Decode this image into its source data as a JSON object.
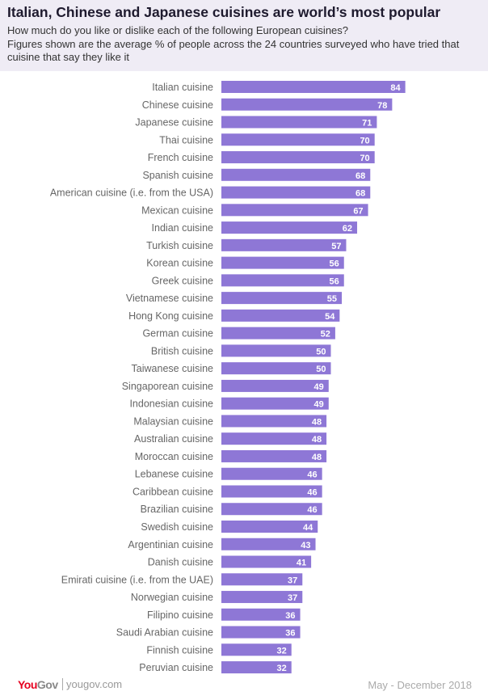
{
  "chart_data": {
    "type": "bar",
    "orientation": "horizontal",
    "title": "Italian, Chinese and Japanese cuisines are world’s most popular",
    "subtitle": [
      "How much do you like or dislike each of the following European cuisines?",
      "Figures shown are the average % of people across the 24 countries surveyed who have tried that cuisine that say they like it"
    ],
    "categories": [
      "Italian cuisine",
      "Chinese cuisine",
      "Japanese cuisine",
      "Thai cuisine",
      "French cuisine",
      "Spanish cuisine",
      "American cuisine (i.e. from the USA)",
      "Mexican cuisine",
      "Indian cuisine",
      "Turkish cuisine",
      "Korean cuisine",
      "Greek cuisine",
      "Vietnamese cuisine",
      "Hong Kong cuisine",
      "German cuisine",
      "British cuisine",
      "Taiwanese cuisine",
      "Singaporean cuisine",
      "Indonesian cuisine",
      "Malaysian cuisine",
      "Australian cuisine",
      "Moroccan cuisine",
      "Lebanese cuisine",
      "Caribbean cuisine",
      "Brazilian cuisine",
      "Swedish cuisine",
      "Argentinian cuisine",
      "Danish cuisine",
      "Emirati cuisine (i.e. from the UAE)",
      "Norwegian cuisine",
      "Filipino cuisine",
      "Saudi Arabian cuisine",
      "Finnish cuisine",
      "Peruvian cuisine"
    ],
    "values": [
      84,
      78,
      71,
      70,
      70,
      68,
      68,
      67,
      62,
      57,
      56,
      56,
      55,
      54,
      52,
      50,
      50,
      49,
      49,
      48,
      48,
      48,
      46,
      46,
      46,
      44,
      43,
      41,
      37,
      37,
      36,
      36,
      32,
      32
    ],
    "bar_color": "#8e77d6",
    "grid": false
  },
  "footer": {
    "brand_you": "You",
    "brand_gov": "Gov",
    "site": "yougov.com",
    "date": "May - December 2018"
  }
}
